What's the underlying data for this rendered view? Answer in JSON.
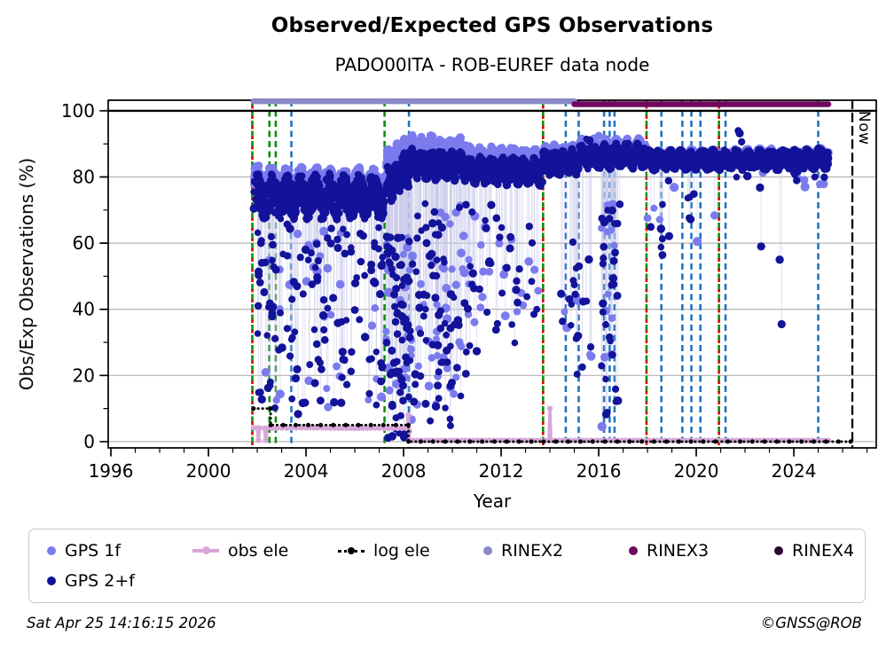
{
  "header": {
    "title": "Observed/Expected GPS Observations",
    "subtitle": "PADO00ITA - ROB-EUREF data node"
  },
  "footer": {
    "timestamp": "Sat Apr 25 14:16:15 2026",
    "copyright": "©GNSS@ROB"
  },
  "legend": {
    "items": [
      {
        "label": "GPS 1f",
        "color": "#7b7bee",
        "marker": "dot"
      },
      {
        "label": "obs ele",
        "color": "#d8a6d8",
        "marker": "line-dot"
      },
      {
        "label": "log ele",
        "color": "#000000",
        "marker": "dotted-line-dot"
      },
      {
        "label": "RINEX2",
        "color": "#8989c8",
        "marker": "dot"
      },
      {
        "label": "RINEX3",
        "color": "#70095e",
        "marker": "dot"
      },
      {
        "label": "RINEX4",
        "color": "#2b0630",
        "marker": "dot"
      },
      {
        "label": "GPS 2+f",
        "color": "#12129a",
        "marker": "dot"
      }
    ]
  },
  "chart_data": {
    "type": "scatter",
    "title": "Observed/Expected GPS Observations",
    "subtitle": "PADO00ITA - ROB-EUREF data node",
    "xlabel": "Year",
    "ylabel": "Obs/Exp Observations (%)",
    "xlim": [
      1995.89,
      2027.38
    ],
    "ylim": [
      -1.9,
      103.2
    ],
    "x_major_ticks": [
      1996,
      2000,
      2004,
      2008,
      2012,
      2016,
      2020,
      2024
    ],
    "x_minor_step": 1,
    "y_major_ticks": [
      0,
      20,
      40,
      60,
      80,
      100
    ],
    "y_minor_ticks": [
      10,
      30,
      50,
      70,
      90
    ],
    "grid": true,
    "hline": 100,
    "legend_position": "bottom",
    "seed": 20260425,
    "now": {
      "year": 2026.4,
      "label": "Now"
    },
    "colors": {
      "light": "#7b7bee",
      "dark": "#12129a",
      "obs_ele": "#d8a6d8",
      "log_ele": "#000000",
      "rinex2": "#8989c8",
      "rinex3": "#70095e",
      "rinex4": "#2b0630",
      "green": "#0e8c0e",
      "blue": "#2273be",
      "red": "#e00000",
      "grid": "#b3b3b3",
      "now": "#000000",
      "drop": "#c9c9ea",
      "axis": "#000000"
    },
    "rinex_bars": [
      {
        "label": "RINEX2",
        "start": 2001.85,
        "end": 2015.0,
        "y": 102.9,
        "color_key": "rinex2"
      },
      {
        "label": "RINEX3",
        "start": 2015.0,
        "end": 2025.42,
        "y": 102.0,
        "color_key": "rinex3"
      }
    ],
    "events": {
      "green": [
        2002.5,
        2002.76,
        2007.22
      ],
      "green_red": [
        2001.8,
        2013.72,
        2017.96,
        2020.93
      ],
      "blue": [
        2003.4,
        2008.22,
        2014.65,
        2015.18,
        2016.22,
        2016.45,
        2016.65,
        2018.57,
        2019.43,
        2019.8,
        2020.17,
        2021.2,
        2025.0
      ]
    },
    "series": [
      {
        "name": "GPS 1f",
        "color_key": "light",
        "marker_r": 4.5,
        "band_segments": [
          [
            2001.85,
            2007.2,
            520,
            79.5,
            78.5,
            2.0,
            9,
            5.0
          ],
          [
            2007.3,
            2008.25,
            110,
            84.0,
            88.5,
            1.5,
            3,
            6.0
          ],
          [
            2008.25,
            2010.6,
            260,
            89.5,
            88.5,
            1.2,
            6,
            4.5
          ],
          [
            2010.6,
            2013.7,
            300,
            86.5,
            86.0,
            1.0,
            7,
            4.0
          ],
          [
            2013.7,
            2015.2,
            160,
            87.0,
            87.5,
            0.8,
            4,
            4.0
          ],
          [
            2015.2,
            2017.95,
            280,
            88.5,
            88.5,
            1.0,
            6,
            4.5
          ],
          [
            2017.95,
            2021.0,
            310,
            86.0,
            86.0,
            0.7,
            7,
            3.5
          ],
          [
            2021.0,
            2025.42,
            440,
            86.0,
            86.5,
            0.7,
            9,
            3.5
          ]
        ]
      },
      {
        "name": "GPS 2+f",
        "color_key": "dark",
        "marker_r": 4.2,
        "band_segments": [
          [
            2001.85,
            2007.2,
            720,
            74.0,
            74.0,
            2.2,
            9,
            10.0
          ],
          [
            2007.3,
            2008.25,
            150,
            77.0,
            83.0,
            2.0,
            3,
            9.0
          ],
          [
            2008.25,
            2010.6,
            350,
            84.0,
            83.5,
            1.5,
            6,
            7.0
          ],
          [
            2010.6,
            2013.7,
            390,
            82.0,
            81.5,
            1.2,
            7,
            6.5
          ],
          [
            2013.7,
            2015.2,
            200,
            84.0,
            84.5,
            1.0,
            4,
            6.0
          ],
          [
            2015.2,
            2017.95,
            370,
            86.0,
            86.5,
            1.0,
            6,
            6.0
          ],
          [
            2017.95,
            2021.0,
            390,
            85.0,
            85.0,
            0.8,
            7,
            5.0
          ],
          [
            2021.0,
            2025.42,
            550,
            85.0,
            85.5,
            0.8,
            9,
            5.0
          ]
        ]
      }
    ],
    "outlier_columns": [
      [
        2002.0,
        2007.18,
        160,
        8,
        66
      ],
      [
        2007.28,
        2008.3,
        95,
        0,
        62
      ],
      [
        2008.3,
        2010.6,
        115,
        4,
        72
      ],
      [
        2010.6,
        2012.7,
        48,
        25,
        72
      ],
      [
        2012.7,
        2013.7,
        12,
        35,
        70
      ],
      [
        2014.45,
        2015.7,
        24,
        18,
        63
      ],
      [
        2016.1,
        2016.9,
        42,
        1,
        72
      ],
      [
        2017.95,
        2018.75,
        9,
        50,
        74
      ],
      [
        2018.8,
        2021.0,
        10,
        60,
        80
      ],
      [
        2021.3,
        2025.3,
        14,
        75,
        82
      ]
    ],
    "outlier_points": [
      {
        "x": 2021.72,
        "y": 94.0,
        "series": "dark"
      },
      {
        "x": 2021.78,
        "y": 93.2,
        "series": "dark"
      },
      {
        "x": 2021.86,
        "y": 90.6,
        "series": "dark"
      },
      {
        "x": 2022.66,
        "y": 59.0,
        "series": "dark"
      },
      {
        "x": 2023.42,
        "y": 55.0,
        "series": "dark"
      },
      {
        "x": 2023.5,
        "y": 35.5,
        "series": "dark"
      },
      {
        "x": 2024.86,
        "y": 80.0,
        "series": "dark"
      },
      {
        "x": 2015.5,
        "y": 91.5,
        "series": "dark"
      },
      {
        "x": 2015.62,
        "y": 91.0,
        "series": "dark"
      },
      {
        "x": 2016.0,
        "y": 92.5,
        "series": "light"
      }
    ],
    "obs_ele": {
      "name": "obs ele",
      "path": [
        [
          2001.85,
          4.2
        ],
        [
          2002.0,
          4.1
        ],
        [
          2002.05,
          0.4
        ],
        [
          2002.1,
          4.1
        ],
        [
          2002.3,
          4.0
        ],
        [
          2002.35,
          0.4
        ],
        [
          2002.4,
          4.0
        ],
        [
          2003.2,
          4.1
        ],
        [
          2004.0,
          4.2
        ],
        [
          2005.0,
          4.1
        ],
        [
          2006.0,
          4.0
        ],
        [
          2007.0,
          4.1
        ],
        [
          2007.2,
          4.0
        ],
        [
          2008.12,
          4.0
        ],
        [
          2008.2,
          8.0
        ],
        [
          2008.24,
          0.35
        ],
        [
          2013.96,
          0.35
        ],
        [
          2014.0,
          10.0
        ],
        [
          2014.04,
          0.35
        ],
        [
          2020.0,
          0.35
        ],
        [
          2025.42,
          0.35
        ]
      ],
      "marker_step": 0.16
    },
    "log_ele": {
      "name": "log ele",
      "path": [
        [
          2001.85,
          10
        ],
        [
          2002.55,
          10
        ],
        [
          2002.55,
          5
        ],
        [
          2008.2,
          5
        ],
        [
          2008.2,
          0
        ],
        [
          2026.33,
          0
        ]
      ],
      "marker_step": 0.5
    }
  }
}
